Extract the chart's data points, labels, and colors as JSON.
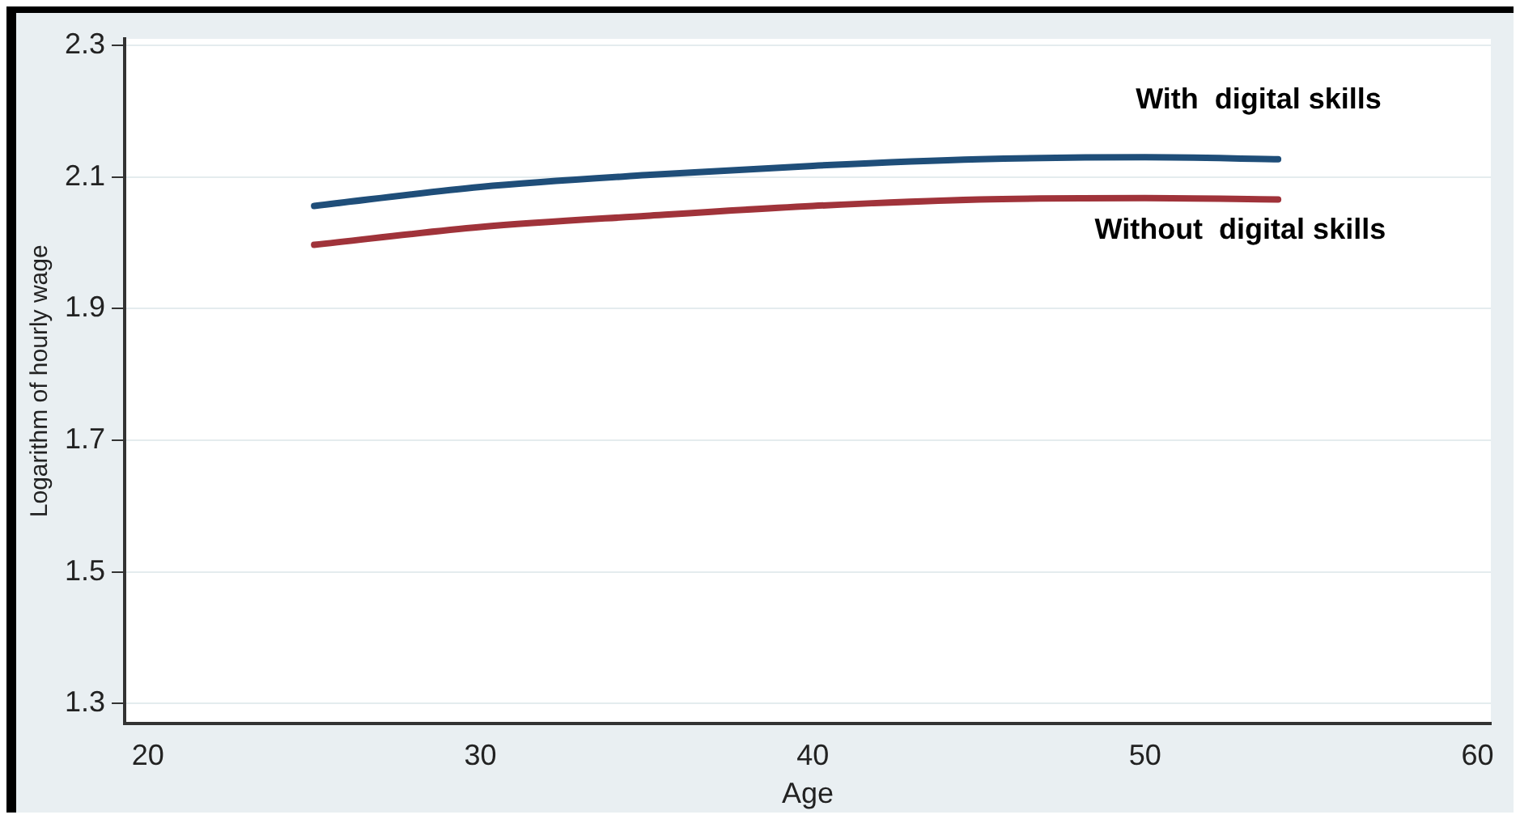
{
  "chart_data": {
    "type": "line",
    "xlabel": "Age",
    "ylabel": "Logarithm of hourly wage",
    "x": [
      25,
      30,
      35,
      40,
      45,
      50,
      54
    ],
    "series": [
      {
        "color": "#1f4e79",
        "values": [
          2.056,
          2.085,
          2.103,
          2.117,
          2.127,
          2.13,
          2.127
        ]
      },
      {
        "color": "#a0333a",
        "values": [
          1.997,
          2.024,
          2.041,
          2.056,
          2.066,
          2.068,
          2.066
        ]
      }
    ],
    "xlim": [
      19.3,
      60.4
    ],
    "xticks": [
      20,
      30,
      40,
      50,
      60
    ],
    "ylim": [
      1.27,
      2.31
    ],
    "yticks": [
      1.3,
      1.5,
      1.7,
      1.9,
      2.1,
      2.3
    ],
    "grid": "y",
    "legend": false,
    "marker": "none",
    "line_style": "solid",
    "annotations": [
      "With  digital skills",
      "Without  digital skills"
    ]
  }
}
